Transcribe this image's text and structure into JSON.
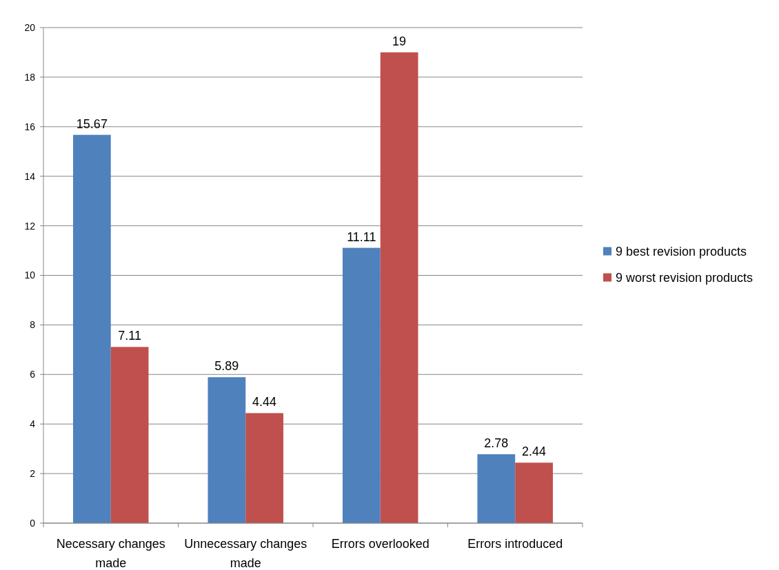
{
  "chart_data": {
    "type": "bar",
    "categories": [
      "Necessary changes made",
      "Unnecessary changes made",
      "Errors overlooked",
      "Errors introduced"
    ],
    "series": [
      {
        "name": "9 best revision products",
        "color": "#4f81bd",
        "values": [
          15.67,
          5.89,
          11.11,
          2.78
        ]
      },
      {
        "name": "9 worst revision products",
        "color": "#c0504d",
        "values": [
          7.11,
          4.44,
          19,
          2.44
        ]
      }
    ],
    "ylim": [
      0,
      20
    ],
    "yticks": [
      0,
      2,
      4,
      6,
      8,
      10,
      12,
      14,
      16,
      18,
      20
    ],
    "grid": "y",
    "legend": "right",
    "data_labels": true
  }
}
